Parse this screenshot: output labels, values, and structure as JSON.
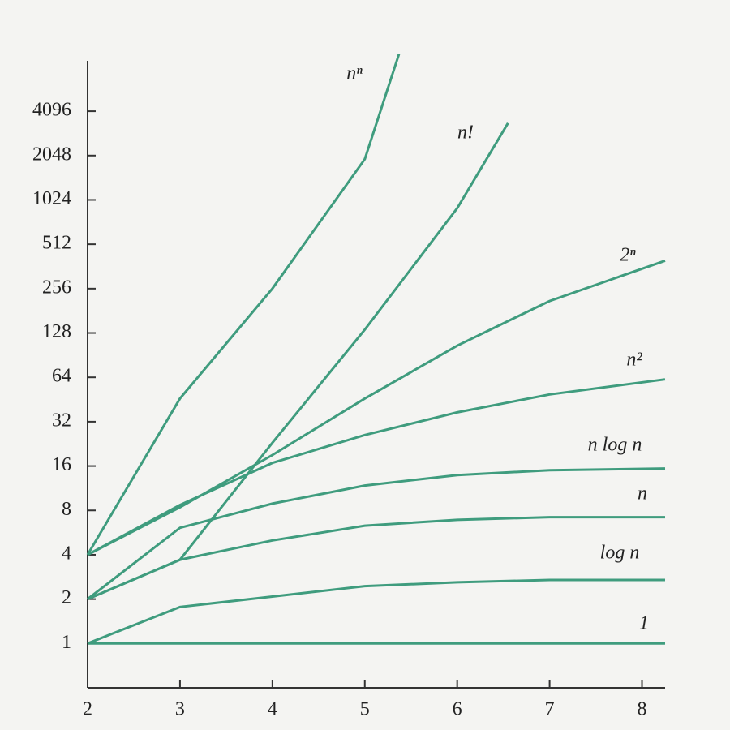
{
  "chart_data": {
    "type": "line",
    "log_scale_y": 2,
    "color": "#3f9c7e",
    "xlim": [
      2,
      8.25
    ],
    "xticks": [
      2,
      3,
      4,
      5,
      6,
      7,
      8
    ],
    "ylim": [
      0.5,
      9000
    ],
    "yticks": [
      1,
      2,
      4,
      8,
      16,
      32,
      64,
      128,
      256,
      512,
      1024,
      2048,
      4096
    ],
    "series": [
      {
        "name": "nⁿ",
        "x": [
          2,
          3,
          4,
          5,
          5.37
        ],
        "values": [
          4,
          46,
          256,
          1940,
          10000
        ]
      },
      {
        "name": "n!",
        "x": [
          2,
          3,
          4,
          5,
          6,
          6.55
        ],
        "values": [
          2,
          3.7,
          23,
          135,
          900,
          3400
        ]
      },
      {
        "name": "2ⁿ",
        "x": [
          2,
          3,
          4,
          5,
          6,
          7,
          8.25
        ],
        "values": [
          4,
          8.4,
          19,
          46,
          105,
          211,
          396
        ]
      },
      {
        "name": "n²",
        "x": [
          2,
          3,
          4,
          5,
          6,
          7,
          8.25
        ],
        "values": [
          4,
          8.7,
          16.8,
          26,
          37,
          49,
          62
        ]
      },
      {
        "name": "n log n",
        "x": [
          2,
          3,
          4,
          5,
          6,
          7,
          8.25
        ],
        "values": [
          2,
          6.1,
          8.9,
          11.8,
          13.9,
          15,
          15.4
        ]
      },
      {
        "name": "n",
        "x": [
          2,
          3,
          4,
          5,
          6,
          7,
          8.25
        ],
        "values": [
          2,
          3.7,
          5,
          6.3,
          6.9,
          7.2,
          7.2
        ]
      },
      {
        "name": "log n",
        "x": [
          2,
          3,
          4,
          5,
          6,
          7,
          8.25
        ],
        "values": [
          1,
          1.77,
          2.08,
          2.45,
          2.6,
          2.7,
          2.7
        ]
      },
      {
        "name": "1",
        "x": [
          2,
          8.25
        ],
        "values": [
          1,
          1
        ]
      }
    ]
  }
}
